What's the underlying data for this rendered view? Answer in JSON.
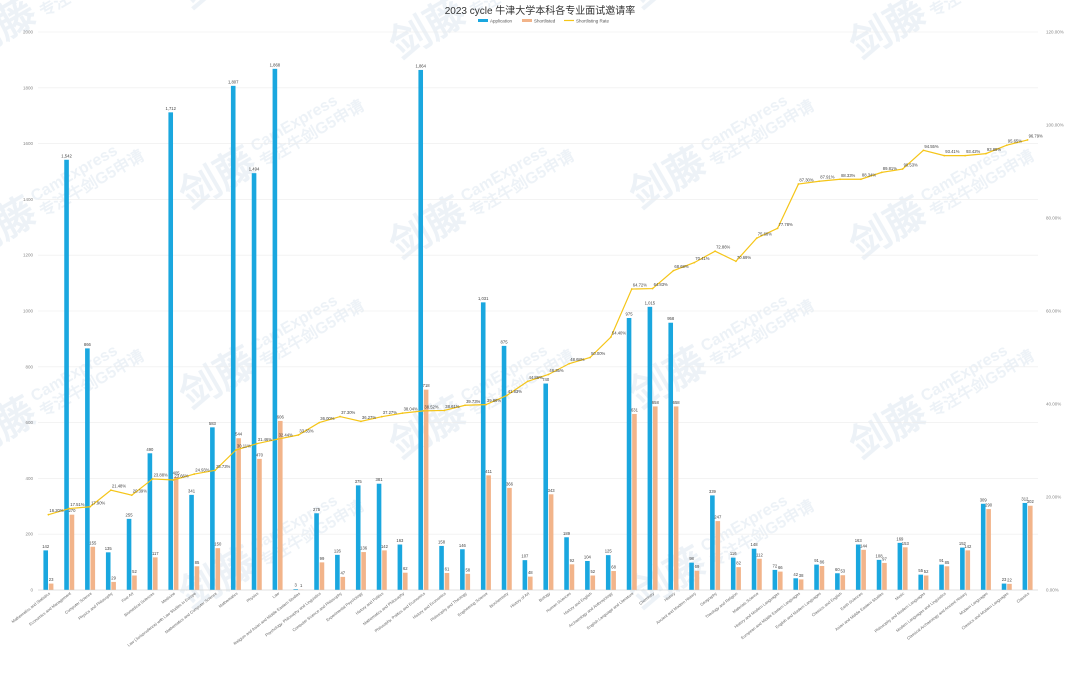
{
  "chart_data": {
    "type": "bar",
    "title": "2023 cycle 牛津大学本科各专业面试邀请率",
    "legend": [
      "Application",
      "Shortlisted",
      "Shortlisting Rate"
    ],
    "colors": {
      "application": "#1aa7df",
      "shortlisted": "#f2b48a",
      "rate": "#f5c518"
    },
    "y_left": {
      "min": 0,
      "max": 2000,
      "ticks": [
        "0",
        "200",
        "400",
        "600",
        "800",
        "1000",
        "1200",
        "1400",
        "1600",
        "1800",
        "2000"
      ]
    },
    "y_right": {
      "min": 0,
      "max": 120,
      "ticks": [
        "0.00%",
        "20.00%",
        "40.00%",
        "60.00%",
        "80.00%",
        "100.00%",
        "120.00%"
      ]
    },
    "grid": true,
    "legend_placement": "top-center",
    "categories": [
      "Mathematics and Statistics",
      "Economics and Management",
      "Computer Science",
      "Physics and Philosophy",
      "Fine Art",
      "Biomedical Sciences",
      "Medicine",
      "Law (Jurisprudence) with Law Studies in Europe",
      "Mathematics and Computer Science",
      "Mathematics",
      "Physics",
      "Law",
      "Religion and Asian and Middle Eastern Studies",
      "Psychology, Philosophy and Linguistics",
      "Computer Science and Philosophy",
      "Experimental Psychology",
      "History and Politics",
      "Mathematics and Philosophy",
      "Philosophy, Politics and Economics",
      "History and Economics",
      "Philosophy and Theology",
      "Engineering Science",
      "Biochemistry",
      "History of Art",
      "Biology",
      "Human Sciences",
      "History and English",
      "Archaeology and Anthropology",
      "English Language and Literature",
      "Chemistry",
      "History",
      "Ancient and Modern History",
      "Geography",
      "Theology and Religion",
      "Materials Science",
      "History and Modern Languages",
      "European and Middle Eastern Languages",
      "English and Modern Languages",
      "Classics and English",
      "Earth Sciences",
      "Asian and Middle Eastern Studies",
      "Music",
      "Philosophy and Modern Languages",
      "Modern Languages and Linguistics",
      "Classical Archaeology and Ancient History",
      "Modern Languages",
      "Classics and Modern Languages",
      "Classics"
    ],
    "series": [
      {
        "name": "Application",
        "values": [
          142,
          1542,
          866,
          135,
          255,
          490,
          1712,
          341,
          583,
          1807,
          1494,
          1868,
          3,
          275,
          126,
          375,
          381,
          163,
          1864,
          158,
          146,
          1031,
          875,
          107,
          740,
          189,
          104,
          125,
          975,
          1015,
          958,
          98,
          339,
          116,
          148,
          72,
          42,
          91,
          60,
          163,
          108,
          169,
          55,
          91,
          152,
          309,
          23,
          312
        ]
      },
      {
        "name": "Shortlisted",
        "values": [
          23,
          270,
          155,
          29,
          52,
          117,
          405,
          85,
          150,
          544,
          470,
          606,
          1,
          99,
          47,
          136,
          142,
          62,
          718,
          61,
          58,
          411,
          366,
          48,
          343,
          92,
          52,
          68,
          631,
          658,
          658,
          69,
          247,
          82,
          112,
          66,
          38,
          86,
          53,
          144,
          97,
          153,
          52,
          85,
          142,
          290,
          22,
          302
        ]
      },
      {
        "name": "Shortlisting Rate",
        "values": [
          16.2,
          17.51,
          17.9,
          21.48,
          20.39,
          23.88,
          23.66,
          24.93,
          25.73,
          30.11,
          31.46,
          32.44,
          33.33,
          36.0,
          37.3,
          36.27,
          37.27,
          38.04,
          38.52,
          38.61,
          39.73,
          39.86,
          41.83,
          44.86,
          46.35,
          48.68,
          50.0,
          54.4,
          64.72,
          64.83,
          68.68,
          70.41,
          72.86,
          70.69,
          75.68,
          77.78,
          87.3,
          87.91,
          88.33,
          88.34,
          89.81,
          90.53,
          94.55,
          93.41,
          93.42,
          93.85,
          95.65,
          96.79
        ]
      }
    ],
    "value_labels": {
      "application": [
        "142",
        "1,542",
        "866",
        "135",
        "255",
        "490",
        "1,712",
        "341",
        "583",
        "1,807",
        "1,494",
        "1,868",
        "3",
        "275",
        "126",
        "375",
        "381",
        "163",
        "1,864",
        "158",
        "146",
        "1,031",
        "875",
        "107",
        "740",
        "189",
        "104",
        "125",
        "975",
        "1,015",
        "958",
        "98",
        "339",
        "116",
        "148",
        "72",
        "42",
        "91",
        "60",
        "163",
        "108",
        "169",
        "55",
        "91",
        "152",
        "309",
        "23",
        "312"
      ],
      "shortlisted": [
        "23",
        "270",
        "155",
        "29",
        "52",
        "117",
        "405",
        "85",
        "150",
        "544",
        "470",
        "606",
        "1",
        "99",
        "47",
        "136",
        "142",
        "62",
        "718",
        "61",
        "58",
        "411",
        "366",
        "48",
        "343",
        "92",
        "52",
        "68",
        "631",
        "658",
        "658",
        "69",
        "247",
        "82",
        "112",
        "66",
        "38",
        "86",
        "53",
        "144",
        "97",
        "153",
        "52",
        "85",
        "142",
        "290",
        "22",
        "302"
      ],
      "rate": [
        "16.20%",
        "17.51%",
        "17.90%",
        "21.48%",
        "20.39%",
        "23.88%",
        "23.66%",
        "24.93%",
        "25.73%",
        "30.11%",
        "31.46%",
        "32.44%",
        "33.33%",
        "36.00%",
        "37.30%",
        "36.27%",
        "37.27%",
        "38.04%",
        "38.52%",
        "38.61%",
        "39.73%",
        "39.86%",
        "41.83%",
        "44.86%",
        "46.35%",
        "48.68%",
        "50.00%",
        "54.40%",
        "64.72%",
        "64.83%",
        "68.68%",
        "70.41%",
        "72.86%",
        "70.69%",
        "75.68%",
        "77.78%",
        "87.30%",
        "87.91%",
        "88.33%",
        "88.34%",
        "89.81%",
        "90.53%",
        "94.55%",
        "93.41%",
        "93.42%",
        "93.85%",
        "95.65%",
        "96.79%"
      ]
    }
  },
  "watermark": {
    "brand_cn": "剑藤",
    "brand_en": "CamExpress",
    "slogan": "专注牛剑G5申请"
  }
}
